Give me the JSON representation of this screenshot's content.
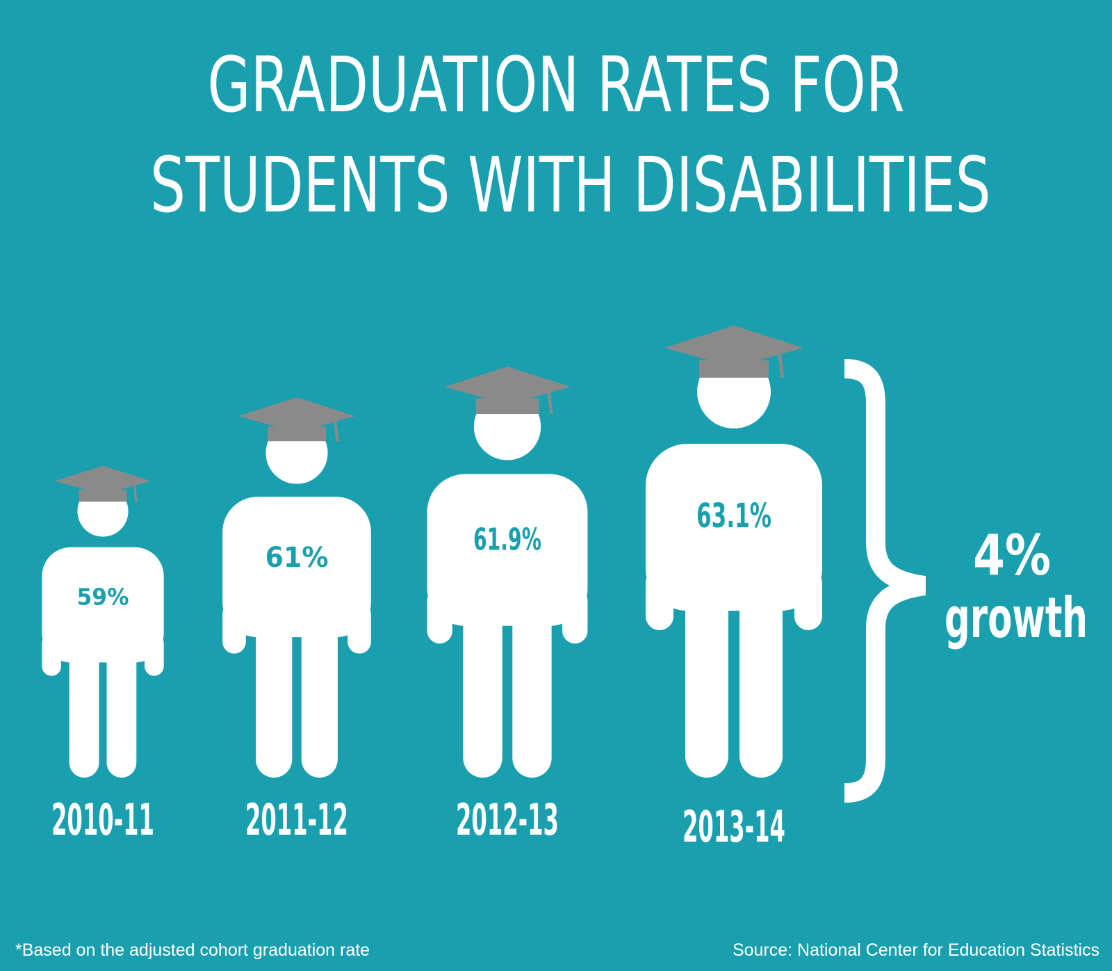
{
  "title": {
    "line1": "GRADUATION RATES FOR",
    "line2": "STUDENTS WITH DISABILITIES"
  },
  "chart_data": {
    "type": "bar",
    "categories": [
      "2010-11",
      "2011-12",
      "2012-13",
      "2013-14"
    ],
    "values": [
      59,
      61,
      61.9,
      63.1
    ],
    "value_labels": [
      "59%",
      "61%",
      "61.9%",
      "63.1%"
    ],
    "title": "GRADUATION RATES FOR STUDENTS WITH DISABILITIES",
    "xlabel": "",
    "ylabel": "",
    "annotation": {
      "line1": "4%",
      "line2": "growth"
    },
    "mark": "graduate-figure"
  },
  "footnote": "*Based on the adjusted cohort graduation rate",
  "source": "Source: National Center for Education Statistics",
  "colors": {
    "background": "#199fae",
    "figure": "#ffffff",
    "cap": "#8a8a8a",
    "value_text": "#199fae",
    "text": "#ffffff"
  }
}
